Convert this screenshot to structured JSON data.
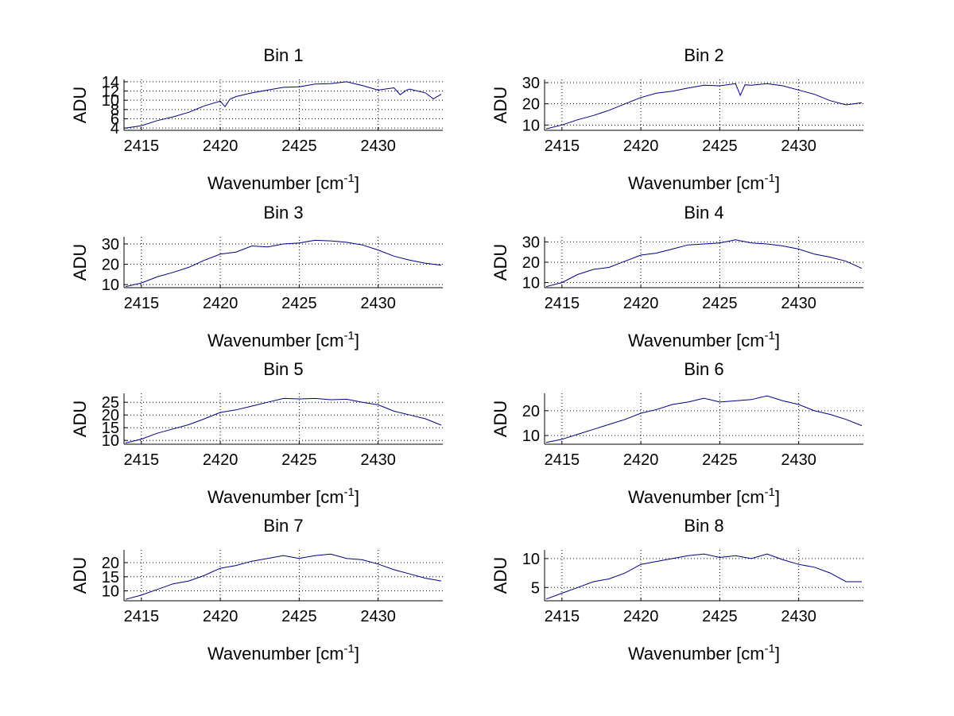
{
  "figure": {
    "background": "#ffffff",
    "line_color": "#000080",
    "grid_color": "#000000"
  },
  "chart_data": [
    {
      "type": "line",
      "title": "Bin 1",
      "ylabel": "ADU",
      "xlabel": "Wavenumber [cm",
      "xlabel_sup": "-1",
      "xlabel_close": "]",
      "xlim": [
        2413.9,
        2434.1
      ],
      "ylim": [
        3.5,
        14.5
      ],
      "xticks": [
        2415,
        2420,
        2425,
        2430
      ],
      "yticks": [
        4,
        6,
        8,
        10,
        12,
        14
      ],
      "grid": true,
      "x": [
        2414,
        2415,
        2416,
        2417,
        2418,
        2419,
        2420,
        2420.3,
        2420.6,
        2421,
        2422,
        2423,
        2424,
        2425,
        2426,
        2427,
        2428,
        2429,
        2430,
        2431,
        2431.4,
        2431.8,
        2432,
        2433,
        2433.5,
        2434
      ],
      "y": [
        4.0,
        4.5,
        5.6,
        6.4,
        7.4,
        8.8,
        9.8,
        8.6,
        10.2,
        10.8,
        11.6,
        12.2,
        12.8,
        12.9,
        13.5,
        13.6,
        14.0,
        13.2,
        12.2,
        12.7,
        11.2,
        12.2,
        12.4,
        11.6,
        10.3,
        11.3
      ]
    },
    {
      "type": "line",
      "title": "Bin 2",
      "ylabel": "ADU",
      "xlabel": "Wavenumber [cm",
      "xlabel_sup": "-1",
      "xlabel_close": "]",
      "xlim": [
        2413.9,
        2434.1
      ],
      "ylim": [
        7.5,
        31.5
      ],
      "xticks": [
        2415,
        2420,
        2425,
        2430
      ],
      "yticks": [
        10,
        20,
        30
      ],
      "grid": true,
      "x": [
        2414,
        2415,
        2416,
        2417,
        2418,
        2419,
        2420,
        2421,
        2422,
        2423,
        2424,
        2425,
        2426,
        2426.3,
        2426.6,
        2427,
        2428,
        2429,
        2430,
        2431,
        2432,
        2433,
        2434
      ],
      "y": [
        8.2,
        10.0,
        12.5,
        14.5,
        17.0,
        20.0,
        23.0,
        25.0,
        26.0,
        27.5,
        28.8,
        28.5,
        29.5,
        24.0,
        29.0,
        28.8,
        29.5,
        28.5,
        26.5,
        24.5,
        21.5,
        19.5,
        20.5
      ]
    },
    {
      "type": "line",
      "title": "Bin 3",
      "ylabel": "ADU",
      "xlabel": "Wavenumber [cm",
      "xlabel_sup": "-1",
      "xlabel_close": "]",
      "xlim": [
        2413.9,
        2434.1
      ],
      "ylim": [
        8.5,
        33.5
      ],
      "xticks": [
        2415,
        2420,
        2425,
        2430
      ],
      "yticks": [
        10,
        20,
        30
      ],
      "grid": true,
      "x": [
        2414,
        2415,
        2416,
        2417,
        2418,
        2419,
        2420,
        2421,
        2422,
        2423,
        2424,
        2425,
        2426,
        2427,
        2428,
        2429,
        2430,
        2431,
        2432,
        2433,
        2434
      ],
      "y": [
        9.0,
        10.8,
        13.8,
        16.0,
        18.5,
        22.0,
        25.0,
        26.0,
        29.0,
        28.5,
        30.0,
        30.5,
        31.8,
        31.5,
        30.8,
        29.5,
        27.0,
        24.0,
        22.0,
        20.5,
        19.5
      ]
    },
    {
      "type": "line",
      "title": "Bin 4",
      "ylabel": "ADU",
      "xlabel": "Wavenumber [cm",
      "xlabel_sup": "-1",
      "xlabel_close": "]",
      "xlim": [
        2413.9,
        2434.1
      ],
      "ylim": [
        7.5,
        32.5
      ],
      "xticks": [
        2415,
        2420,
        2425,
        2430
      ],
      "yticks": [
        10,
        20,
        30
      ],
      "grid": true,
      "x": [
        2414,
        2415,
        2416,
        2417,
        2418,
        2419,
        2420,
        2421,
        2422,
        2423,
        2424,
        2425,
        2426,
        2427,
        2428,
        2429,
        2430,
        2431,
        2432,
        2433,
        2434
      ],
      "y": [
        8.0,
        10.0,
        14.0,
        16.5,
        17.5,
        20.5,
        23.5,
        24.5,
        26.5,
        28.5,
        29.0,
        29.5,
        31.0,
        29.5,
        29.0,
        28.0,
        26.5,
        24.0,
        22.5,
        20.5,
        17.0
      ]
    },
    {
      "type": "line",
      "title": "Bin 5",
      "ylabel": "ADU",
      "xlabel": "Wavenumber [cm",
      "xlabel_sup": "-1",
      "xlabel_close": "]",
      "xlim": [
        2413.9,
        2434.1
      ],
      "ylim": [
        8.5,
        28.5
      ],
      "xticks": [
        2415,
        2420,
        2425,
        2430
      ],
      "yticks": [
        10,
        15,
        20,
        25
      ],
      "grid": true,
      "x": [
        2414,
        2415,
        2416,
        2417,
        2418,
        2419,
        2420,
        2421,
        2422,
        2423,
        2424,
        2425,
        2426,
        2427,
        2428,
        2429,
        2430,
        2431,
        2432,
        2433,
        2434
      ],
      "y": [
        9.0,
        10.5,
        12.8,
        14.5,
        16.2,
        18.5,
        21.0,
        22.0,
        23.5,
        25.0,
        26.5,
        26.3,
        26.5,
        26.0,
        26.2,
        25.0,
        24.0,
        21.5,
        20.0,
        18.5,
        16.0
      ]
    },
    {
      "type": "line",
      "title": "Bin 6",
      "ylabel": "ADU",
      "xlabel": "Wavenumber [cm",
      "xlabel_sup": "-1",
      "xlabel_close": "]",
      "xlim": [
        2413.9,
        2434.1
      ],
      "ylim": [
        6.5,
        27.0
      ],
      "xticks": [
        2415,
        2420,
        2425,
        2430
      ],
      "yticks": [
        10,
        20
      ],
      "grid": true,
      "x": [
        2414,
        2415,
        2416,
        2417,
        2418,
        2419,
        2420,
        2421,
        2422,
        2423,
        2424,
        2425,
        2426,
        2427,
        2428,
        2429,
        2430,
        2431,
        2432,
        2433,
        2434
      ],
      "y": [
        7.2,
        8.5,
        10.5,
        12.5,
        14.5,
        16.5,
        19.0,
        20.5,
        22.5,
        23.5,
        25.0,
        23.5,
        24.0,
        24.5,
        26.0,
        24.0,
        22.5,
        20.0,
        18.5,
        16.5,
        14.0
      ]
    },
    {
      "type": "line",
      "title": "Bin 7",
      "ylabel": "ADU",
      "xlabel": "Wavenumber [cm",
      "xlabel_sup": "-1",
      "xlabel_close": "]",
      "xlim": [
        2413.9,
        2434.1
      ],
      "ylim": [
        6.5,
        24.5
      ],
      "xticks": [
        2415,
        2420,
        2425,
        2430
      ],
      "yticks": [
        10,
        15,
        20
      ],
      "grid": true,
      "x": [
        2414,
        2415,
        2416,
        2417,
        2418,
        2419,
        2420,
        2421,
        2422,
        2423,
        2424,
        2425,
        2426,
        2427,
        2428,
        2429,
        2430,
        2431,
        2432,
        2433,
        2434
      ],
      "y": [
        7.0,
        8.5,
        10.5,
        12.5,
        13.5,
        15.5,
        18.0,
        19.0,
        20.5,
        21.5,
        22.5,
        21.5,
        22.5,
        23.0,
        21.5,
        21.0,
        19.5,
        17.5,
        16.0,
        14.5,
        13.5
      ]
    },
    {
      "type": "line",
      "title": "Bin 8",
      "ylabel": "ADU",
      "xlabel": "Wavenumber [cm",
      "xlabel_sup": "-1",
      "xlabel_close": "]",
      "xlim": [
        2413.9,
        2434.1
      ],
      "ylim": [
        2.7,
        11.5
      ],
      "xticks": [
        2415,
        2420,
        2425,
        2430
      ],
      "yticks": [
        5,
        10
      ],
      "grid": true,
      "x": [
        2414,
        2415,
        2416,
        2417,
        2418,
        2419,
        2420,
        2421,
        2422,
        2423,
        2424,
        2425,
        2426,
        2427,
        2428,
        2429,
        2430,
        2431,
        2432,
        2433,
        2434
      ],
      "y": [
        3.0,
        4.0,
        5.0,
        6.0,
        6.5,
        7.5,
        9.0,
        9.5,
        10.0,
        10.5,
        10.8,
        10.2,
        10.5,
        10.0,
        10.8,
        9.8,
        9.0,
        8.5,
        7.5,
        6.0,
        6.0
      ]
    }
  ]
}
